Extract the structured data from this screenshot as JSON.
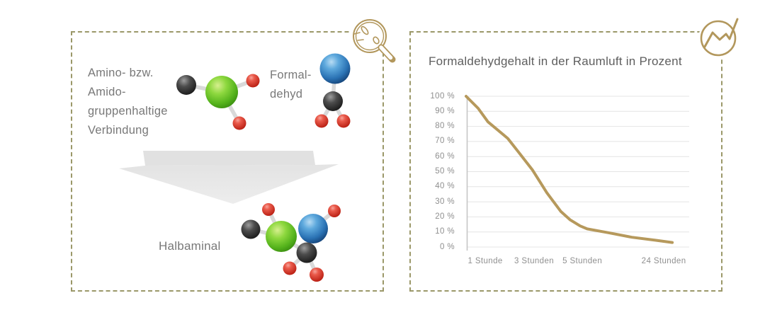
{
  "colors": {
    "panel_border": "#9b9869",
    "badge_gold": "#b2975c",
    "chart_line": "#b6995c",
    "text_gray": "#787878",
    "grid_gray": "#e4e4e4",
    "axis_gray": "#c6c6c6",
    "arrow_gray": "#e2e2e2"
  },
  "icons": {
    "left_badge": "magnifier-molecules-icon",
    "right_badge": "trend-line-icon",
    "reaction_arrow": "arrow-down"
  },
  "left_panel": {
    "reactant_lines": [
      "Amino- bzw.",
      "Amido-",
      "gruppenhaltige",
      "Verbindung"
    ],
    "formaldehyde_lines": [
      "Formal-",
      "dehyd"
    ],
    "product_label": "Halbaminal"
  },
  "chart_data": {
    "type": "line",
    "title": "Formaldehydgehalt in der Raumluft in Prozent",
    "xlabel": "",
    "ylabel": "",
    "ylim": [
      0,
      100
    ],
    "grid": true,
    "legend": "none",
    "y_axis": {
      "min": 0,
      "max": 100,
      "step": 10,
      "unit": "%",
      "labels": [
        "100 %",
        "90 %",
        "80 %",
        "70 %",
        "60 %",
        "50 %",
        "40 %",
        "30 %",
        "20 %",
        "10 %",
        "0 %"
      ]
    },
    "x_ticks": [
      {
        "label": "1 Stunde",
        "pos": 0.086
      },
      {
        "label": "3 Stunden",
        "pos": 0.305
      },
      {
        "label": "5 Stunden",
        "pos": 0.521
      },
      {
        "label": "24 Stunden",
        "pos": 0.886
      }
    ],
    "values_at_ticks": {
      "1 Stunde": 83,
      "3 Stunden": 50,
      "5 Stunden": 13,
      "24 Stunden": 3
    },
    "series": [
      {
        "name": "Formaldehydgehalt",
        "color": "#b6995c",
        "points_norm": [
          [
            0.0,
            100
          ],
          [
            0.054,
            92
          ],
          [
            0.098,
            83
          ],
          [
            0.171,
            74
          ],
          [
            0.187,
            72
          ],
          [
            0.235,
            63
          ],
          [
            0.298,
            51
          ],
          [
            0.362,
            36
          ],
          [
            0.425,
            23.5
          ],
          [
            0.467,
            18
          ],
          [
            0.511,
            14
          ],
          [
            0.543,
            12
          ],
          [
            0.638,
            9.5
          ],
          [
            0.743,
            6.5
          ],
          [
            0.848,
            4.5
          ],
          [
            0.924,
            3
          ]
        ]
      }
    ]
  }
}
